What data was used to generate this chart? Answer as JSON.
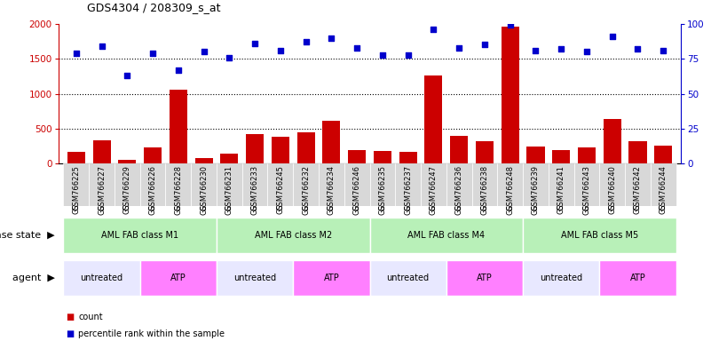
{
  "title": "GDS4304 / 208309_s_at",
  "samples": [
    "GSM766225",
    "GSM766227",
    "GSM766229",
    "GSM766226",
    "GSM766228",
    "GSM766230",
    "GSM766231",
    "GSM766233",
    "GSM766245",
    "GSM766232",
    "GSM766234",
    "GSM766246",
    "GSM766235",
    "GSM766237",
    "GSM766247",
    "GSM766236",
    "GSM766238",
    "GSM766248",
    "GSM766239",
    "GSM766241",
    "GSM766243",
    "GSM766240",
    "GSM766242",
    "GSM766244"
  ],
  "counts": [
    175,
    330,
    60,
    230,
    1060,
    75,
    140,
    420,
    390,
    450,
    610,
    200,
    185,
    165,
    1260,
    400,
    325,
    1960,
    250,
    200,
    235,
    640,
    320,
    255
  ],
  "percentile": [
    79,
    84,
    63,
    79,
    67,
    80,
    76,
    86,
    81,
    87,
    90,
    83,
    78,
    78,
    96,
    83,
    85,
    99,
    81,
    82,
    80,
    91,
    82,
    81
  ],
  "disease_state_groups": [
    {
      "label": "AML FAB class M1",
      "start": 0,
      "end": 6,
      "color": "#b8f0b8"
    },
    {
      "label": "AML FAB class M2",
      "start": 6,
      "end": 12,
      "color": "#b8f0b8"
    },
    {
      "label": "AML FAB class M4",
      "start": 12,
      "end": 18,
      "color": "#b8f0b8"
    },
    {
      "label": "AML FAB class M5",
      "start": 18,
      "end": 24,
      "color": "#b8f0b8"
    }
  ],
  "agent_groups": [
    {
      "label": "untreated",
      "start": 0,
      "end": 3,
      "color": "#e8e8ff"
    },
    {
      "label": "ATP",
      "start": 3,
      "end": 6,
      "color": "#ff80ff"
    },
    {
      "label": "untreated",
      "start": 6,
      "end": 9,
      "color": "#e8e8ff"
    },
    {
      "label": "ATP",
      "start": 9,
      "end": 12,
      "color": "#ff80ff"
    },
    {
      "label": "untreated",
      "start": 12,
      "end": 15,
      "color": "#e8e8ff"
    },
    {
      "label": "ATP",
      "start": 15,
      "end": 18,
      "color": "#ff80ff"
    },
    {
      "label": "untreated",
      "start": 18,
      "end": 21,
      "color": "#e8e8ff"
    },
    {
      "label": "ATP",
      "start": 21,
      "end": 24,
      "color": "#ff80ff"
    }
  ],
  "ylim_left": [
    0,
    2000
  ],
  "ylim_right": [
    0,
    100
  ],
  "yticks_left": [
    0,
    500,
    1000,
    1500,
    2000
  ],
  "yticks_right": [
    0,
    25,
    50,
    75,
    100
  ],
  "bar_color": "#cc0000",
  "dot_color": "#0000cc",
  "bg_color": "#ffffff",
  "tick_area_color": "#d8d8d8",
  "title_fontsize": 9,
  "tick_fontsize": 6,
  "label_fontsize": 8,
  "axis_label_fontsize": 8
}
